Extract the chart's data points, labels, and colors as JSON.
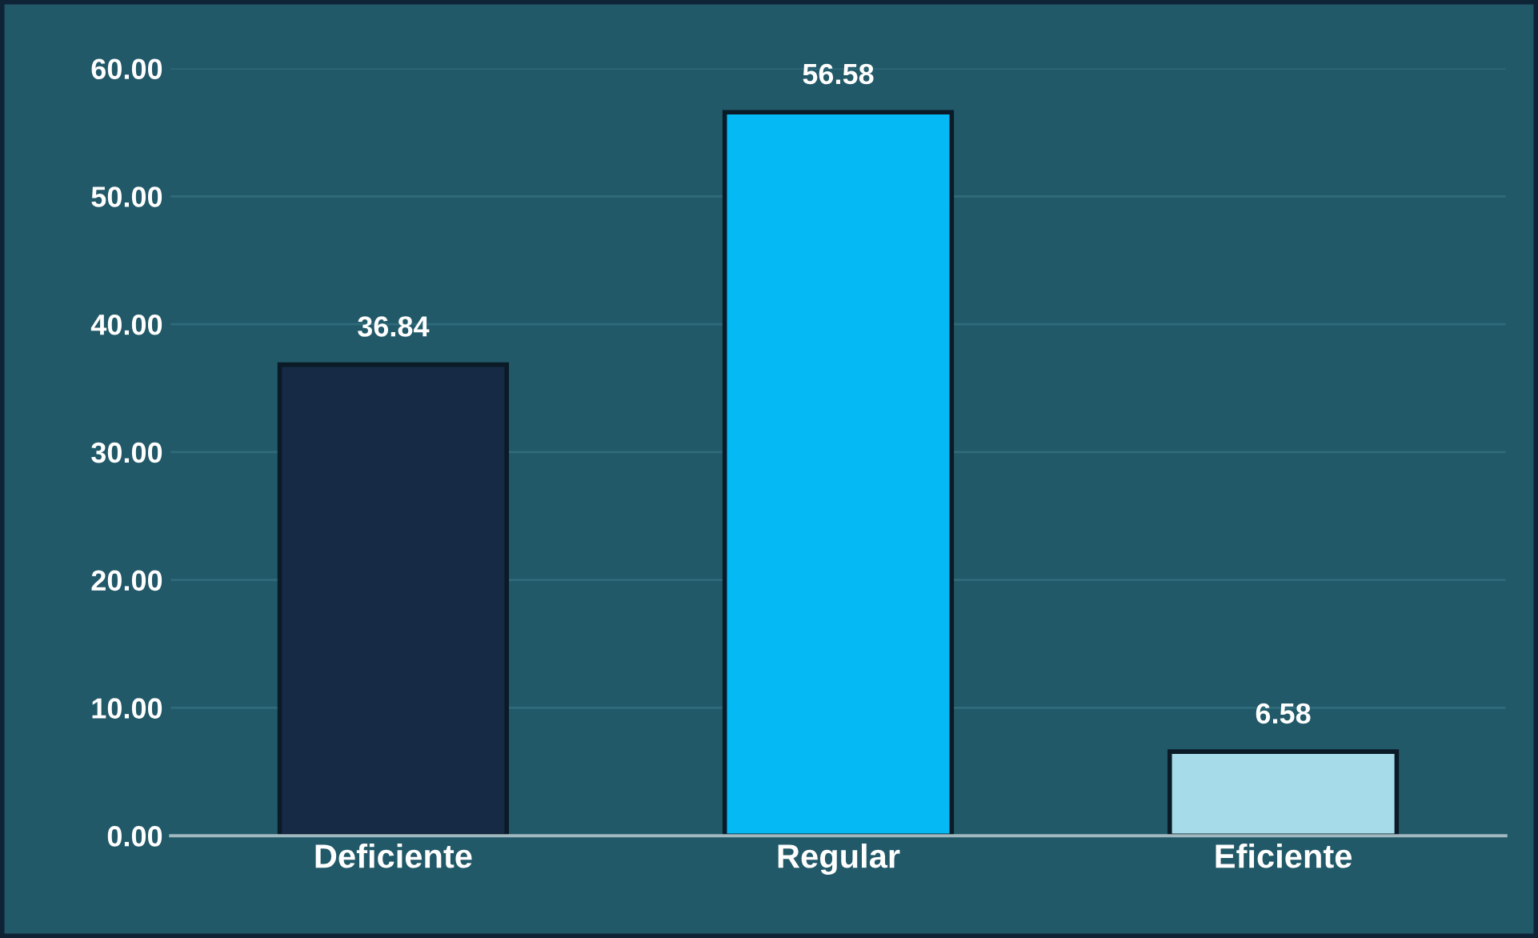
{
  "chart_data": {
    "type": "bar",
    "categories": [
      "Deficiente",
      "Regular",
      "Eficiente"
    ],
    "values": [
      36.84,
      56.58,
      6.58
    ],
    "colors": [
      "#172a45",
      "#05b9f5",
      "#a6dcea"
    ],
    "ylim": [
      0,
      60
    ],
    "yticks": [
      {
        "value": 0,
        "label": "0.00"
      },
      {
        "value": 10,
        "label": "10.00"
      },
      {
        "value": 20,
        "label": "20.00"
      },
      {
        "value": 30,
        "label": "30.00"
      },
      {
        "value": 40,
        "label": "40.00"
      },
      {
        "value": 50,
        "label": "50.00"
      },
      {
        "value": 60,
        "label": "60.00"
      }
    ],
    "grid": "y",
    "legend": false,
    "data_labels": true
  }
}
